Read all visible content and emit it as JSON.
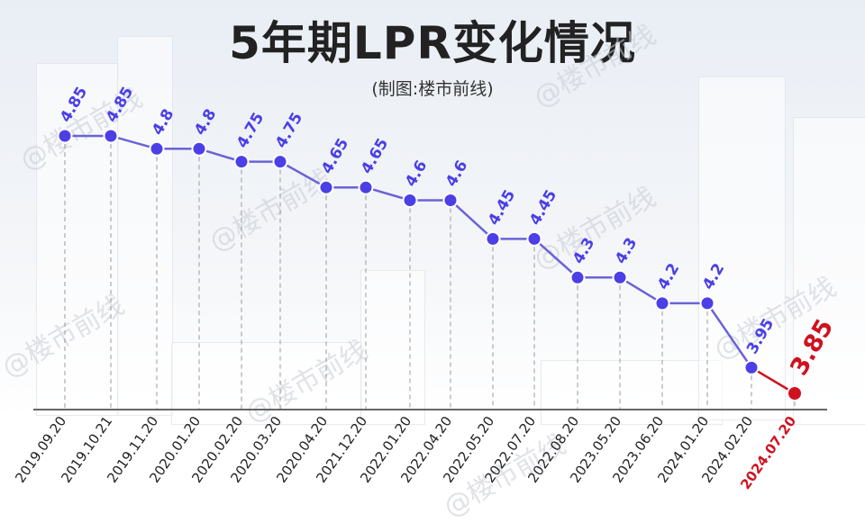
{
  "title": "5年期LPR变化情况",
  "subtitle": "(制图:楼市前线)",
  "watermark": "@楼市前线",
  "colors": {
    "line": "#6b62d6",
    "point": "#4b3fe6",
    "highlight": "#d0111f",
    "label": "#4b3fe6",
    "axis": "#666666"
  },
  "chart_data": {
    "type": "line",
    "title": "5年期LPR变化情况",
    "xlabel": "",
    "ylabel": "",
    "categories": [
      "2019.09.20",
      "2019.10.21",
      "2019.11.20",
      "2020.01.20",
      "2020.02.20",
      "2020.03.20",
      "2020.04.20",
      "2021.12.20",
      "2022.01.20",
      "2022.04.20",
      "2022.05.20",
      "2022.07.20",
      "2022.08.20",
      "2023.05.20",
      "2023.06.20",
      "2024.01.20",
      "2024.02.20",
      "2024.07.20"
    ],
    "values": [
      4.85,
      4.85,
      4.8,
      4.8,
      4.75,
      4.75,
      4.65,
      4.65,
      4.6,
      4.6,
      4.45,
      4.45,
      4.3,
      4.3,
      4.2,
      4.2,
      3.95,
      3.85
    ],
    "value_labels": [
      "4.85",
      "4.85",
      "4.8",
      "4.8",
      "4.75",
      "4.75",
      "4.65",
      "4.65",
      "4.6",
      "4.6",
      "4.45",
      "4.45",
      "4.3",
      "4.3",
      "4.2",
      "4.2",
      "3.95",
      "3.85"
    ],
    "highlight_index": 17,
    "grid": "vertical dashed",
    "legend": "none"
  }
}
